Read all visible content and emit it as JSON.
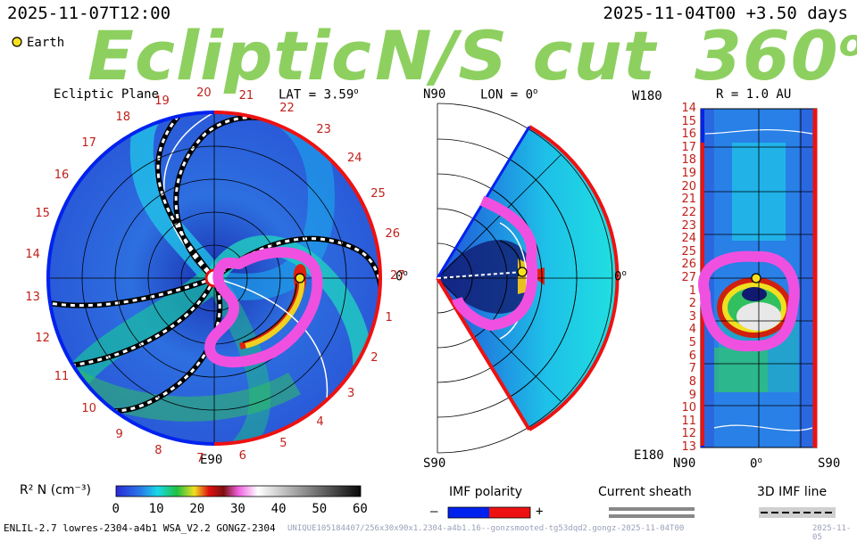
{
  "header": {
    "left_date": "2025-11-07T12:00",
    "right_date": "2025-11-04T00 +3.50 days",
    "title_ecliptic": "Ecliptic",
    "title_cut": "N/S cut",
    "title_360": "360",
    "title_degree": "o",
    "legend_earth": "Earth"
  },
  "panel_ecliptic": {
    "label": "Ecliptic Plane",
    "lat_label": "LAT = 3.59",
    "lat_deg": "o",
    "zero_label": "0",
    "zero_deg": "o",
    "bottom_label": "E90",
    "clock_numbers": [
      "20",
      "21",
      "22",
      "23",
      "24",
      "25",
      "26",
      "27",
      "1",
      "2",
      "3",
      "4",
      "5",
      "6",
      "7",
      "8",
      "9",
      "10",
      "11",
      "12",
      "13",
      "14",
      "15",
      "16",
      "17",
      "18",
      "19"
    ]
  },
  "panel_meridional": {
    "top_label": "N90",
    "lon_label": "LON = 0",
    "lon_deg": "o",
    "right_label": "0",
    "right_deg": "o",
    "bottom_label": "S90"
  },
  "panel_radius": {
    "top_left": "W180",
    "r_label": "R = 1.0 AU",
    "bottom_left": "E180",
    "x_left": "N90",
    "x_mid": "0",
    "x_mid_deg": "o",
    "x_right": "S90",
    "rows": [
      "14",
      "15",
      "16",
      "17",
      "18",
      "19",
      "20",
      "21",
      "22",
      "23",
      "24",
      "25",
      "26",
      "27",
      "1",
      "2",
      "3",
      "4",
      "5",
      "6",
      "7",
      "8",
      "9",
      "10",
      "11",
      "12",
      "13"
    ]
  },
  "colorbar": {
    "label": "R² N (cm⁻³)",
    "ticks": [
      "0",
      "10",
      "20",
      "30",
      "40",
      "50",
      "60"
    ]
  },
  "legend": {
    "imf_polarity": "IMF polarity",
    "minus": "–",
    "plus": "+",
    "current_sheath": "Current sheath",
    "imf_line": "3D IMF line",
    "color_negative": "#0022ee",
    "color_positive": "#ee1111"
  },
  "footer": {
    "model": "ENLIL-2.7 lowres-2304-a4b1 WSA_V2.2 GONGZ-2304",
    "run_id": "UNIQUE105184407/256x30x90x1.2304-a4b1.16--gonzsmooted-tg53dqd2.gongz-2025-11-04T00",
    "run_date": "2025-11-05"
  }
}
